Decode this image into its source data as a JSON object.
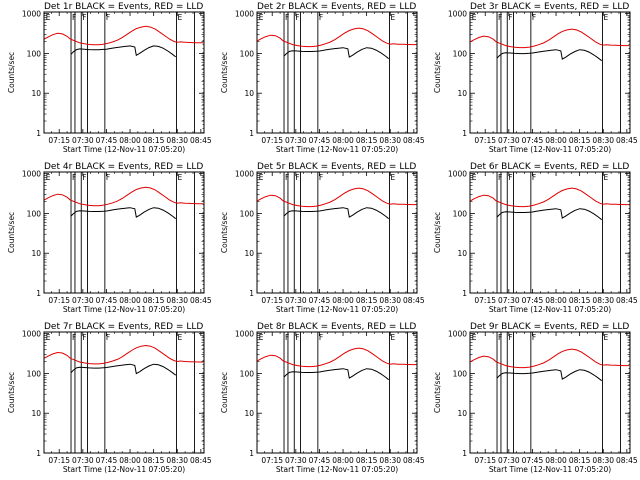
{
  "colors": {
    "events": "#000000",
    "lld": "#e00000"
  },
  "chart_data": {
    "type": "line",
    "title_suffix": "BLACK = Events, RED = LLD",
    "xlabel": "Start Time (12-Nov-11 07:05:20)",
    "ylabel": "Counts/sec",
    "x_ticks": [
      "07:15",
      "07:30",
      "07:45",
      "08:00",
      "08:15",
      "08:30",
      "08:45"
    ],
    "x_tick_minutes": [
      15,
      30,
      45,
      60,
      75,
      90,
      105
    ],
    "x_range_minutes": [
      5.33,
      107
    ],
    "y_ticks": [
      "1",
      "10",
      "100",
      "1000"
    ],
    "y_tick_values": [
      1,
      10,
      100,
      1000
    ],
    "ylim": [
      1,
      1100
    ],
    "yscale": "log",
    "vlines_minutes": [
      22.5,
      25,
      29,
      33,
      44,
      89.5,
      101
    ],
    "markers": [
      {
        "text": "E",
        "x_min": 5.8
      },
      {
        "text": "F",
        "x_min": 22.5
      },
      {
        "text": "F",
        "x_min": 29
      },
      {
        "text": "F",
        "x_min": 44
      },
      {
        "text": "E",
        "x_min": 89.5
      }
    ],
    "panels": [
      {
        "title": "Det 1r",
        "lld_scale": 1.0,
        "events_scale": 1.0
      },
      {
        "title": "Det 2r",
        "lld_scale": 0.9,
        "events_scale": 0.9
      },
      {
        "title": "Det 3r",
        "lld_scale": 0.85,
        "events_scale": 0.8
      },
      {
        "title": "Det 4r",
        "lld_scale": 0.95,
        "events_scale": 0.9
      },
      {
        "title": "Det 5r",
        "lld_scale": 0.9,
        "events_scale": 0.9
      },
      {
        "title": "Det 6r",
        "lld_scale": 0.9,
        "events_scale": 0.85
      },
      {
        "title": "Det 7r",
        "lld_scale": 1.05,
        "events_scale": 1.1
      },
      {
        "title": "Det 8r",
        "lld_scale": 0.9,
        "events_scale": 0.85
      },
      {
        "title": "Det 9r",
        "lld_scale": 0.85,
        "events_scale": 0.8
      }
    ],
    "series": [
      {
        "name": "LLD",
        "x": [
          5.5,
          8,
          11,
          14,
          17,
          20,
          22,
          25,
          28,
          31,
          34,
          37,
          40,
          43,
          46,
          49,
          52,
          55,
          58,
          61,
          64,
          67,
          70,
          73,
          76,
          79,
          82,
          85,
          88,
          90,
          92,
          95,
          98,
          101,
          104,
          106.5
        ],
        "values": [
          230,
          260,
          295,
          320,
          310,
          270,
          230,
          205,
          185,
          175,
          168,
          165,
          165,
          170,
          180,
          195,
          215,
          250,
          300,
          360,
          420,
          460,
          480,
          460,
          410,
          340,
          280,
          230,
          200,
          190,
          195,
          190,
          188,
          186,
          185,
          185
        ]
      },
      {
        "name": "Events",
        "x": [
          22.5,
          24,
          26,
          28,
          31,
          34,
          37,
          40,
          43,
          45,
          47,
          49,
          51,
          54,
          57,
          60,
          63,
          64,
          66,
          69,
          72,
          75,
          78,
          81,
          84,
          87,
          89
        ],
        "values": [
          95,
          110,
          125,
          130,
          128,
          125,
          124,
          124,
          126,
          128,
          132,
          136,
          140,
          145,
          150,
          155,
          145,
          90,
          100,
          120,
          140,
          155,
          150,
          135,
          115,
          95,
          82
        ]
      }
    ]
  }
}
